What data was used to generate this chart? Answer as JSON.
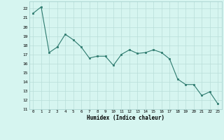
{
  "x": [
    0,
    1,
    2,
    3,
    4,
    5,
    6,
    7,
    8,
    9,
    10,
    11,
    12,
    13,
    14,
    15,
    16,
    17,
    18,
    19,
    20,
    21,
    22,
    23
  ],
  "y": [
    21.5,
    22.2,
    17.2,
    17.8,
    19.2,
    18.6,
    17.8,
    16.6,
    16.8,
    16.8,
    15.8,
    17.0,
    17.5,
    17.1,
    17.2,
    17.5,
    17.2,
    16.5,
    14.3,
    13.7,
    13.7,
    12.5,
    12.9,
    11.6
  ],
  "line_color": "#2d7a6e",
  "marker": "s",
  "marker_size": 1.8,
  "bg_color": "#d6f5f0",
  "grid_color": "#b8ddd8",
  "xlabel": "Humidex (Indice chaleur)",
  "ylabel_ticks": [
    11,
    12,
    13,
    14,
    15,
    16,
    17,
    18,
    19,
    20,
    21,
    22
  ],
  "ylim": [
    11,
    22.8
  ],
  "xlim": [
    -0.5,
    23.5
  ]
}
